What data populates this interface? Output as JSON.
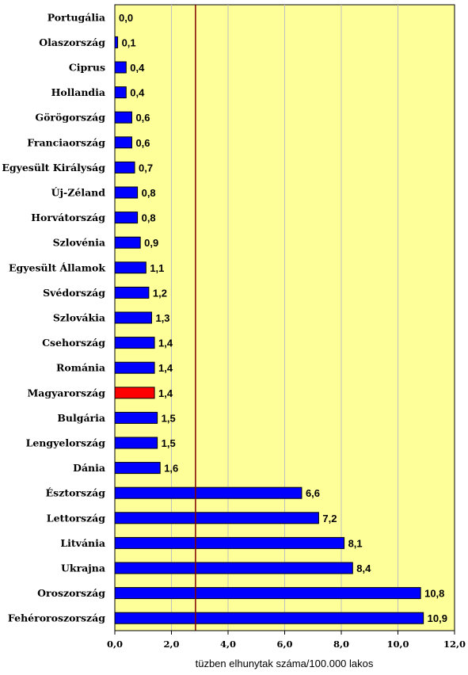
{
  "chart_data": {
    "type": "bar",
    "orientation": "horizontal",
    "categories": [
      "Portugália",
      "Olaszország",
      "Ciprus",
      "Hollandia",
      "Görögország",
      "Franciaország",
      "Egyesült Királyság",
      "Új-Zéland",
      "Horvátország",
      "Szlovénia",
      "Egyesült Államok",
      "Svédország",
      "Szlovákia",
      "Csehország",
      "Románia",
      "Magyarország",
      "Bulgária",
      "Lengyelország",
      "Dánia",
      "Észtország",
      "Lettország",
      "Litvánia",
      "Ukrajna",
      "Oroszország",
      "Fehéroroszország"
    ],
    "values": [
      0.0,
      0.1,
      0.4,
      0.4,
      0.6,
      0.6,
      0.7,
      0.8,
      0.8,
      0.9,
      1.1,
      1.2,
      1.3,
      1.4,
      1.4,
      1.4,
      1.5,
      1.5,
      1.6,
      6.6,
      7.2,
      8.1,
      8.4,
      10.8,
      10.9
    ],
    "value_labels": [
      "0,0",
      "0,1",
      "0,4",
      "0,4",
      "0,6",
      "0,6",
      "0,7",
      "0,8",
      "0,8",
      "0,9",
      "1,1",
      "1,2",
      "1,3",
      "1,4",
      "1,4",
      "1,4",
      "1,5",
      "1,5",
      "1,6",
      "6,6",
      "7,2",
      "8,1",
      "8,4",
      "10,8",
      "10,9"
    ],
    "highlight_category": "Magyarország",
    "xlabel": "tüzben elhunytak száma/100.000 lakos",
    "xlim": [
      0,
      12
    ],
    "x_ticks": [
      0,
      2,
      4,
      6,
      8,
      10,
      12
    ],
    "x_tick_labels": [
      "0,0",
      "2,0",
      "4,0",
      "6,0",
      "8,0",
      "10,0",
      "12,0"
    ],
    "reference_line": 2.85,
    "grid": true,
    "colors": {
      "plot_background": "#ffff99",
      "bar": "#0000ff",
      "bar_outline": "#000000",
      "highlight_bar": "#ff0000",
      "gridline": "#c0c0c0",
      "reference_line": "#800000"
    }
  }
}
